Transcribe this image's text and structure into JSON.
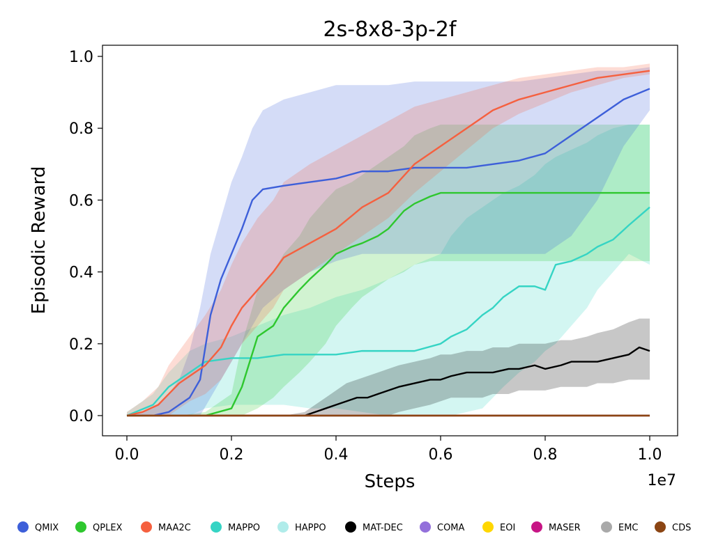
{
  "chart_data": {
    "type": "line",
    "title": "2s-8x8-3p-2f",
    "xlabel": "Steps",
    "ylabel": "Episodic Reward",
    "x_scale_label": "1e7",
    "xlim": [
      0,
      1.0
    ],
    "ylim": [
      -0.05,
      1.03
    ],
    "x_ticks": [
      "0.0",
      "0.2",
      "0.4",
      "0.6",
      "0.8",
      "1.0"
    ],
    "y_ticks": [
      "0.0",
      "0.2",
      "0.4",
      "0.6",
      "0.8",
      "1.0"
    ],
    "grid": false,
    "legend_position": "bottom",
    "series": [
      {
        "name": "QMIX",
        "color": "#3d5fd9",
        "x": [
          0,
          0.05,
          0.08,
          0.1,
          0.12,
          0.14,
          0.16,
          0.18,
          0.2,
          0.22,
          0.24,
          0.26,
          0.3,
          0.35,
          0.4,
          0.45,
          0.5,
          0.55,
          0.6,
          0.65,
          0.7,
          0.75,
          0.8,
          0.85,
          0.9,
          0.95,
          1.0
        ],
        "y": [
          0,
          0,
          0.01,
          0.03,
          0.05,
          0.1,
          0.28,
          0.38,
          0.45,
          0.52,
          0.6,
          0.63,
          0.64,
          0.65,
          0.66,
          0.68,
          0.68,
          0.69,
          0.69,
          0.69,
          0.7,
          0.71,
          0.73,
          0.78,
          0.83,
          0.88,
          0.91
        ],
        "lower": [
          0,
          0,
          0,
          0,
          0,
          0,
          0.05,
          0.1,
          0.15,
          0.2,
          0.25,
          0.3,
          0.35,
          0.4,
          0.43,
          0.45,
          0.45,
          0.45,
          0.45,
          0.45,
          0.45,
          0.45,
          0.45,
          0.5,
          0.6,
          0.75,
          0.85
        ],
        "upper": [
          0,
          0.02,
          0.06,
          0.1,
          0.18,
          0.3,
          0.45,
          0.55,
          0.65,
          0.72,
          0.8,
          0.85,
          0.88,
          0.9,
          0.92,
          0.92,
          0.92,
          0.93,
          0.93,
          0.93,
          0.93,
          0.93,
          0.94,
          0.95,
          0.96,
          0.96,
          0.97
        ]
      },
      {
        "name": "QPLEX",
        "color": "#2ec72e",
        "x": [
          0,
          0.1,
          0.15,
          0.2,
          0.22,
          0.25,
          0.28,
          0.3,
          0.33,
          0.35,
          0.38,
          0.4,
          0.43,
          0.45,
          0.48,
          0.5,
          0.53,
          0.55,
          0.58,
          0.6,
          0.65,
          0.7,
          0.75,
          0.8,
          0.85,
          0.9,
          0.95,
          1.0
        ],
        "y": [
          0,
          0,
          0,
          0.02,
          0.08,
          0.22,
          0.25,
          0.3,
          0.35,
          0.38,
          0.42,
          0.45,
          0.47,
          0.48,
          0.5,
          0.52,
          0.57,
          0.59,
          0.61,
          0.62,
          0.62,
          0.62,
          0.62,
          0.62,
          0.62,
          0.62,
          0.62,
          0.62
        ],
        "lower": [
          0,
          0,
          0,
          0,
          0,
          0.02,
          0.05,
          0.08,
          0.12,
          0.15,
          0.2,
          0.25,
          0.3,
          0.33,
          0.36,
          0.38,
          0.4,
          0.42,
          0.43,
          0.43,
          0.43,
          0.43,
          0.43,
          0.43,
          0.43,
          0.43,
          0.43,
          0.43
        ],
        "upper": [
          0,
          0,
          0.01,
          0.06,
          0.2,
          0.35,
          0.4,
          0.45,
          0.5,
          0.55,
          0.6,
          0.63,
          0.65,
          0.67,
          0.7,
          0.72,
          0.75,
          0.78,
          0.8,
          0.81,
          0.81,
          0.81,
          0.81,
          0.81,
          0.81,
          0.81,
          0.81,
          0.81
        ]
      },
      {
        "name": "MAA2C",
        "color": "#f5603f",
        "x": [
          0,
          0.03,
          0.06,
          0.08,
          0.1,
          0.12,
          0.15,
          0.18,
          0.2,
          0.22,
          0.25,
          0.28,
          0.3,
          0.35,
          0.4,
          0.45,
          0.5,
          0.55,
          0.6,
          0.65,
          0.7,
          0.75,
          0.8,
          0.85,
          0.9,
          0.95,
          1.0
        ],
        "y": [
          0,
          0.01,
          0.03,
          0.06,
          0.09,
          0.11,
          0.14,
          0.19,
          0.25,
          0.3,
          0.35,
          0.4,
          0.44,
          0.48,
          0.52,
          0.58,
          0.62,
          0.7,
          0.75,
          0.8,
          0.85,
          0.88,
          0.9,
          0.92,
          0.94,
          0.95,
          0.96
        ],
        "lower": [
          0,
          0,
          0,
          0,
          0.02,
          0.04,
          0.06,
          0.1,
          0.15,
          0.2,
          0.25,
          0.3,
          0.35,
          0.4,
          0.45,
          0.5,
          0.55,
          0.62,
          0.68,
          0.74,
          0.8,
          0.84,
          0.87,
          0.9,
          0.92,
          0.94,
          0.95
        ],
        "upper": [
          0.01,
          0.04,
          0.08,
          0.14,
          0.18,
          0.22,
          0.28,
          0.35,
          0.42,
          0.48,
          0.55,
          0.6,
          0.65,
          0.7,
          0.74,
          0.78,
          0.82,
          0.86,
          0.88,
          0.9,
          0.92,
          0.94,
          0.95,
          0.96,
          0.97,
          0.97,
          0.98
        ]
      },
      {
        "name": "MAPPO",
        "color": "#35d4c4",
        "x": [
          0,
          0.05,
          0.08,
          0.1,
          0.12,
          0.15,
          0.2,
          0.25,
          0.3,
          0.35,
          0.4,
          0.45,
          0.5,
          0.55,
          0.6,
          0.62,
          0.65,
          0.68,
          0.7,
          0.72,
          0.75,
          0.78,
          0.8,
          0.82,
          0.85,
          0.88,
          0.9,
          0.93,
          0.96,
          1.0
        ],
        "y": [
          0,
          0.03,
          0.08,
          0.1,
          0.12,
          0.15,
          0.16,
          0.16,
          0.17,
          0.17,
          0.17,
          0.18,
          0.18,
          0.18,
          0.2,
          0.22,
          0.24,
          0.28,
          0.3,
          0.33,
          0.36,
          0.36,
          0.35,
          0.42,
          0.43,
          0.45,
          0.47,
          0.49,
          0.53,
          0.58
        ],
        "lower": [
          0,
          0,
          0,
          0,
          0,
          0.02,
          0.03,
          0.03,
          0.03,
          0.02,
          0.02,
          0.01,
          0,
          0,
          0,
          0,
          0.01,
          0.02,
          0.05,
          0.08,
          0.12,
          0.15,
          0.18,
          0.2,
          0.25,
          0.3,
          0.35,
          0.4,
          0.45,
          0.42
        ],
        "upper": [
          0.01,
          0.06,
          0.12,
          0.15,
          0.18,
          0.2,
          0.22,
          0.25,
          0.28,
          0.3,
          0.33,
          0.35,
          0.38,
          0.42,
          0.45,
          0.5,
          0.55,
          0.58,
          0.6,
          0.62,
          0.64,
          0.67,
          0.7,
          0.72,
          0.74,
          0.76,
          0.78,
          0.8,
          0.81,
          0.81
        ]
      },
      {
        "name": "HAPPO",
        "color": "#b0ecea",
        "x": [
          0,
          0.2,
          0.4,
          0.6,
          0.8,
          1.0
        ],
        "y": [
          0,
          0,
          0,
          0,
          0,
          0
        ],
        "lower": [
          0,
          0,
          0,
          0,
          0,
          0
        ],
        "upper": [
          0,
          0,
          0,
          0,
          0,
          0
        ]
      },
      {
        "name": "MAT-DEC",
        "color": "#000000",
        "x": [
          0,
          0.3,
          0.34,
          0.36,
          0.38,
          0.4,
          0.42,
          0.44,
          0.46,
          0.48,
          0.5,
          0.52,
          0.55,
          0.58,
          0.6,
          0.62,
          0.65,
          0.68,
          0.7,
          0.73,
          0.75,
          0.78,
          0.8,
          0.83,
          0.85,
          0.88,
          0.9,
          0.93,
          0.96,
          0.98,
          1.0
        ],
        "y": [
          0,
          0,
          0,
          0.01,
          0.02,
          0.03,
          0.04,
          0.05,
          0.05,
          0.06,
          0.07,
          0.08,
          0.09,
          0.1,
          0.1,
          0.11,
          0.12,
          0.12,
          0.12,
          0.13,
          0.13,
          0.14,
          0.13,
          0.14,
          0.15,
          0.15,
          0.15,
          0.16,
          0.17,
          0.19,
          0.18
        ],
        "lower": [
          0,
          0,
          0,
          0,
          0,
          0,
          0,
          0,
          0,
          0,
          0,
          0.01,
          0.02,
          0.03,
          0.04,
          0.05,
          0.05,
          0.05,
          0.06,
          0.06,
          0.07,
          0.07,
          0.07,
          0.08,
          0.08,
          0.08,
          0.09,
          0.09,
          0.1,
          0.1,
          0.1
        ],
        "upper": [
          0,
          0,
          0.01,
          0.03,
          0.05,
          0.07,
          0.09,
          0.1,
          0.11,
          0.12,
          0.13,
          0.14,
          0.15,
          0.16,
          0.17,
          0.17,
          0.18,
          0.18,
          0.19,
          0.19,
          0.2,
          0.2,
          0.2,
          0.21,
          0.21,
          0.22,
          0.23,
          0.24,
          0.26,
          0.27,
          0.27
        ]
      },
      {
        "name": "COMA",
        "color": "#9370db",
        "x": [
          0,
          0.2,
          0.4,
          0.6,
          0.8,
          1.0
        ],
        "y": [
          0,
          0,
          0,
          0,
          0,
          0
        ],
        "lower": [
          0,
          0,
          0,
          0,
          0,
          0
        ],
        "upper": [
          0,
          0,
          0,
          0,
          0,
          0
        ]
      },
      {
        "name": "EOI",
        "color": "#ffd700",
        "x": [
          0,
          0.2,
          0.4,
          0.6,
          0.8,
          1.0
        ],
        "y": [
          0,
          0,
          0,
          0,
          0,
          0
        ],
        "lower": [
          0,
          0,
          0,
          0,
          0,
          0
        ],
        "upper": [
          0,
          0,
          0,
          0,
          0,
          0
        ]
      },
      {
        "name": "MASER",
        "color": "#c71585",
        "x": [
          0,
          0.2,
          0.4,
          0.6,
          0.8,
          1.0
        ],
        "y": [
          0,
          0,
          0,
          0,
          0,
          0
        ],
        "lower": [
          0,
          0,
          0,
          0,
          0,
          0
        ],
        "upper": [
          0,
          0,
          0,
          0,
          0,
          0
        ]
      },
      {
        "name": "EMC",
        "color": "#a9a9a9",
        "x": [
          0,
          0.2,
          0.4,
          0.6,
          0.8,
          1.0
        ],
        "y": [
          0,
          0,
          0,
          0,
          0,
          0
        ],
        "lower": [
          0,
          0,
          0,
          0,
          0,
          0
        ],
        "upper": [
          0,
          0,
          0,
          0,
          0,
          0
        ]
      },
      {
        "name": "CDS",
        "color": "#8b4513",
        "x": [
          0,
          0.2,
          0.4,
          0.6,
          0.8,
          1.0
        ],
        "y": [
          0,
          0,
          0,
          0,
          0,
          0
        ],
        "lower": [
          0,
          0,
          0,
          0,
          0,
          0
        ],
        "upper": [
          0,
          0,
          0,
          0,
          0,
          0
        ]
      }
    ]
  }
}
